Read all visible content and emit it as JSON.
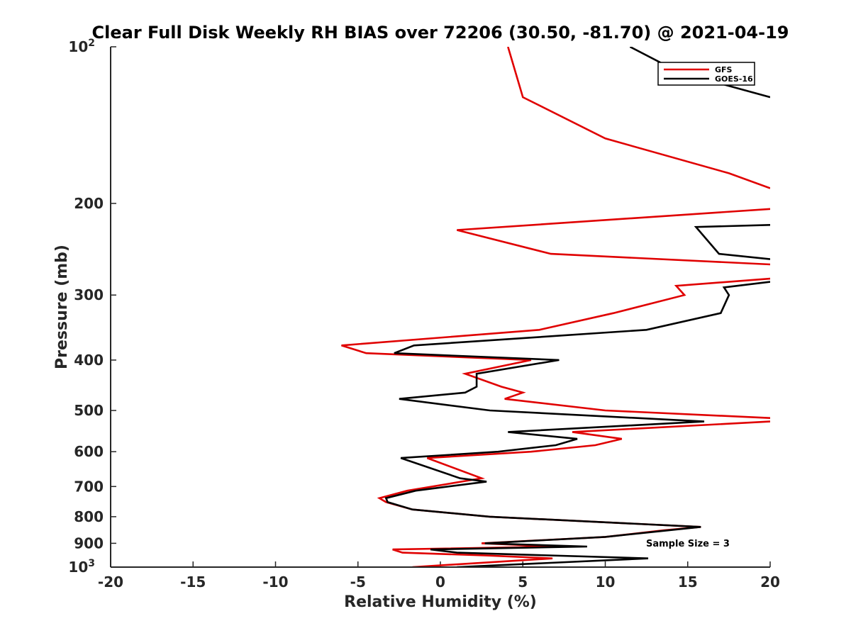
{
  "chart_data": {
    "type": "line",
    "title": "Clear Full Disk Weekly RH BIAS over 72206 (30.50, -81.70) @ 2021-04-19",
    "xlabel": "Relative Humidity (%)",
    "ylabel": "Pressure (mb)",
    "xlim": [
      -20,
      20
    ],
    "ylim": [
      100,
      1000
    ],
    "y_scale": "log",
    "y_reversed": true,
    "x_ticks": [
      "-20",
      "-15",
      "-10",
      "-5",
      "0",
      "5",
      "10",
      "15",
      "20"
    ],
    "y_ticks": [
      {
        "base": "10",
        "exp": "2",
        "value": 100
      },
      {
        "label": "200",
        "value": 200
      },
      {
        "label": "300",
        "value": 300
      },
      {
        "label": "400",
        "value": 400
      },
      {
        "label": "500",
        "value": 500
      },
      {
        "label": "600",
        "value": 600
      },
      {
        "label": "700",
        "value": 700
      },
      {
        "label": "800",
        "value": 800
      },
      {
        "label": "900",
        "value": 900
      },
      {
        "base": "10",
        "exp": "3",
        "value": 1000
      }
    ],
    "grid": false,
    "legend_position": "top-right",
    "annotation": "Sample Size = 3",
    "series": [
      {
        "name": "GFS",
        "color": "#e00000",
        "points": [
          [
            4.1,
            100
          ],
          [
            5.0,
            125
          ],
          [
            10.0,
            150
          ],
          [
            17.5,
            175
          ],
          [
            20.0,
            187
          ],
          null,
          [
            20.0,
            205
          ],
          [
            1.0,
            225
          ],
          [
            6.7,
            250
          ],
          [
            20.0,
            262
          ],
          null,
          [
            20.0,
            279
          ],
          [
            14.3,
            288
          ],
          [
            14.8,
            300
          ],
          [
            10.5,
            325
          ],
          [
            6.0,
            350
          ],
          [
            -6.0,
            375
          ],
          [
            -4.5,
            388
          ],
          [
            5.5,
            400
          ],
          [
            1.5,
            425
          ],
          [
            3.7,
            450
          ],
          [
            5.0,
            462
          ],
          [
            3.9,
            475
          ],
          [
            10.0,
            500
          ],
          [
            20.0,
            517
          ],
          null,
          [
            20.0,
            525
          ],
          [
            8.0,
            550
          ],
          [
            11.0,
            567
          ],
          [
            9.4,
            583
          ],
          [
            5.5,
            600
          ],
          [
            -0.8,
            617
          ],
          [
            2.5,
            675
          ],
          [
            -2.0,
            713
          ],
          [
            -3.7,
            737
          ],
          [
            -3.3,
            750
          ],
          [
            -1.7,
            775
          ],
          [
            3.0,
            800
          ],
          [
            15.8,
            837
          ],
          [
            13.5,
            850
          ],
          [
            10.0,
            875
          ],
          [
            2.5,
            900
          ],
          [
            7.0,
            913
          ],
          [
            -2.9,
            925
          ],
          [
            -2.3,
            938
          ],
          [
            2.8,
            950
          ],
          [
            6.8,
            962
          ],
          [
            -1.7,
            1000
          ]
        ]
      },
      {
        "name": "GOES-16",
        "color": "#000000",
        "points": [
          [
            11.5,
            100
          ],
          [
            14.5,
            112
          ],
          [
            20.0,
            125
          ],
          null,
          [
            20.0,
            220
          ],
          [
            15.5,
            222
          ],
          [
            16.9,
            250
          ],
          [
            20.0,
            256
          ],
          null,
          [
            20.0,
            283
          ],
          [
            17.2,
            290
          ],
          [
            17.5,
            300
          ],
          [
            17.0,
            325
          ],
          [
            12.5,
            350
          ],
          [
            -1.6,
            375
          ],
          [
            -2.8,
            388
          ],
          [
            7.2,
            400
          ],
          [
            2.2,
            425
          ],
          [
            2.2,
            450
          ],
          [
            1.5,
            462
          ],
          [
            -2.5,
            475
          ],
          [
            3.0,
            500
          ],
          [
            16.0,
            525
          ],
          [
            4.1,
            550
          ],
          [
            8.3,
            567
          ],
          [
            7.0,
            583
          ],
          [
            3.5,
            600
          ],
          [
            -2.4,
            617
          ],
          [
            1.2,
            675
          ],
          [
            2.8,
            685
          ],
          [
            -1.5,
            713
          ],
          [
            -3.3,
            737
          ],
          [
            -3.2,
            750
          ],
          [
            -1.7,
            775
          ],
          [
            3.0,
            800
          ],
          [
            15.8,
            837
          ],
          [
            10.0,
            875
          ],
          [
            2.7,
            900
          ],
          [
            8.9,
            913
          ],
          [
            -0.6,
            925
          ],
          [
            1.0,
            938
          ],
          [
            12.6,
            962
          ],
          [
            1.0,
            1000
          ]
        ]
      }
    ]
  }
}
